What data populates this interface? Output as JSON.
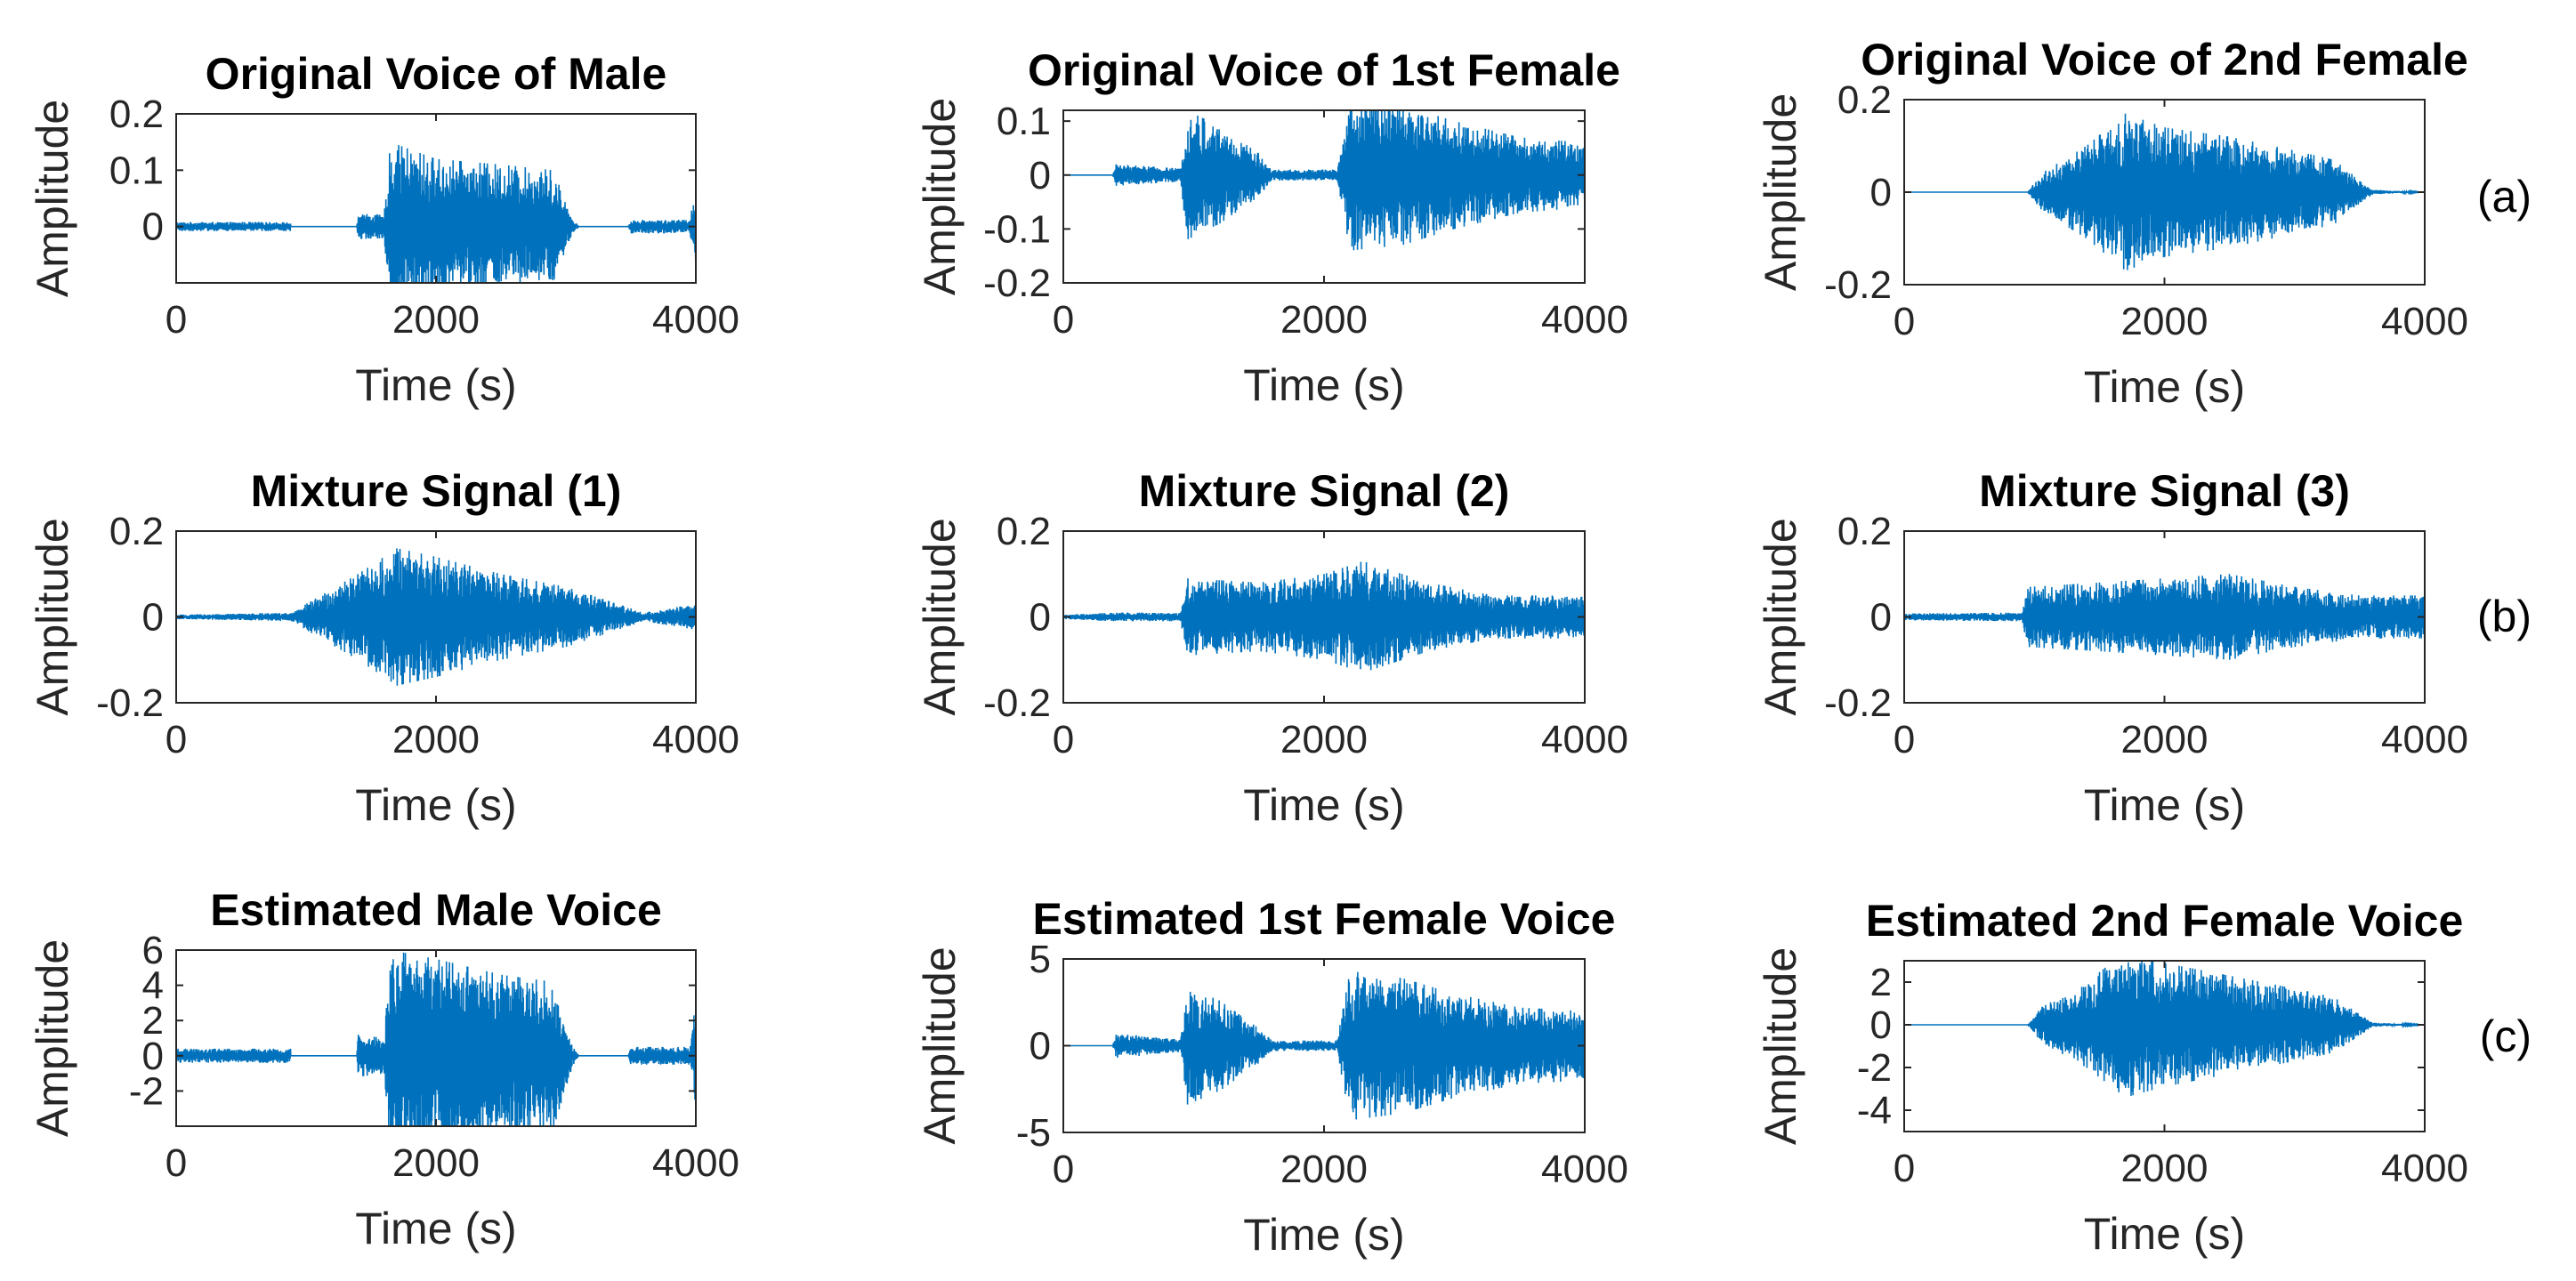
{
  "figure": {
    "row_labels": [
      "(a)",
      "(b)",
      "(c)"
    ]
  },
  "chart_data": [
    {
      "type": "line",
      "title": "Original Voice of Male",
      "xlabel": "Time (s)",
      "ylabel": "Amplitude",
      "xlim": [
        0,
        4000
      ],
      "ylim": [
        -0.1,
        0.2
      ],
      "xticks": [
        0,
        2000,
        4000
      ],
      "yticks": [
        0,
        0.1,
        0.2
      ],
      "ytick_labels": [
        "0",
        "0.1",
        "0.2"
      ],
      "series_color": "#0072BD",
      "envelope": [
        {
          "t": 0,
          "a": 0.008
        },
        {
          "t": 880,
          "a": 0.008
        },
        {
          "t": 881,
          "a": 0.0
        },
        {
          "t": 1390,
          "a": 0.0
        },
        {
          "t": 1400,
          "a": 0.025
        },
        {
          "t": 1600,
          "a": 0.02
        },
        {
          "t": 1650,
          "a": 0.15
        },
        {
          "t": 2000,
          "a": 0.12
        },
        {
          "t": 2500,
          "a": 0.11
        },
        {
          "t": 2900,
          "a": 0.1
        },
        {
          "t": 3050,
          "a": 0.015
        },
        {
          "t": 3100,
          "a": 0.0
        },
        {
          "t": 3480,
          "a": 0.0
        },
        {
          "t": 3500,
          "a": 0.012
        },
        {
          "t": 3950,
          "a": 0.012
        },
        {
          "t": 4000,
          "a": 0.07
        }
      ]
    },
    {
      "type": "line",
      "title": "Original Voice of 1st Female",
      "xlabel": "Time (s)",
      "ylabel": "Amplitude",
      "xlim": [
        0,
        4000
      ],
      "ylim": [
        -0.2,
        0.12
      ],
      "xticks": [
        0,
        2000,
        4000
      ],
      "yticks": [
        -0.2,
        -0.1,
        0,
        0.1
      ],
      "ytick_labels": [
        "-0.2",
        "-0.1",
        "0",
        "0.1"
      ],
      "series_color": "#0072BD",
      "envelope": [
        {
          "t": 0,
          "a": 0.0
        },
        {
          "t": 380,
          "a": 0.0
        },
        {
          "t": 400,
          "a": 0.02
        },
        {
          "t": 900,
          "a": 0.012
        },
        {
          "t": 950,
          "a": 0.12
        },
        {
          "t": 1200,
          "a": 0.09
        },
        {
          "t": 1500,
          "a": 0.04
        },
        {
          "t": 1600,
          "a": 0.01
        },
        {
          "t": 2100,
          "a": 0.01
        },
        {
          "t": 2200,
          "a": 0.14
        },
        {
          "t": 2600,
          "a": 0.13
        },
        {
          "t": 3000,
          "a": 0.1
        },
        {
          "t": 3500,
          "a": 0.07
        },
        {
          "t": 4000,
          "a": 0.06
        }
      ]
    },
    {
      "type": "line",
      "title": "Original Voice of 2nd Female",
      "xlabel": "Time (s)",
      "ylabel": "Amplitude",
      "xlim": [
        0,
        4000
      ],
      "ylim": [
        -0.2,
        0.2
      ],
      "xticks": [
        0,
        2000,
        4000
      ],
      "yticks": [
        -0.2,
        0,
        0.2
      ],
      "ytick_labels": [
        "-0.2",
        "0",
        "0.2"
      ],
      "series_color": "#0072BD",
      "envelope": [
        {
          "t": 0,
          "a": 0.0
        },
        {
          "t": 950,
          "a": 0.0
        },
        {
          "t": 1050,
          "a": 0.04
        },
        {
          "t": 1400,
          "a": 0.1
        },
        {
          "t": 1700,
          "a": 0.17
        },
        {
          "t": 2000,
          "a": 0.14
        },
        {
          "t": 2500,
          "a": 0.12
        },
        {
          "t": 3000,
          "a": 0.09
        },
        {
          "t": 3300,
          "a": 0.07
        },
        {
          "t": 3600,
          "a": 0.005
        },
        {
          "t": 4000,
          "a": 0.0
        }
      ]
    },
    {
      "type": "line",
      "title": "Mixture Signal (1)",
      "xlabel": "Time (s)",
      "ylabel": "Amplitude",
      "xlim": [
        0,
        4000
      ],
      "ylim": [
        -0.2,
        0.2
      ],
      "xticks": [
        0,
        2000,
        4000
      ],
      "yticks": [
        -0.2,
        0,
        0.2
      ],
      "ytick_labels": [
        "-0.2",
        "0",
        "0.2"
      ],
      "series_color": "#0072BD",
      "envelope": [
        {
          "t": 0,
          "a": 0.005
        },
        {
          "t": 900,
          "a": 0.01
        },
        {
          "t": 1000,
          "a": 0.03
        },
        {
          "t": 1400,
          "a": 0.1
        },
        {
          "t": 1700,
          "a": 0.16
        },
        {
          "t": 2000,
          "a": 0.14
        },
        {
          "t": 2500,
          "a": 0.1
        },
        {
          "t": 3000,
          "a": 0.07
        },
        {
          "t": 3300,
          "a": 0.04
        },
        {
          "t": 3600,
          "a": 0.01
        },
        {
          "t": 4000,
          "a": 0.03
        }
      ]
    },
    {
      "type": "line",
      "title": "Mixture Signal (2)",
      "xlabel": "Time (s)",
      "ylabel": "Amplitude",
      "xlim": [
        0,
        4000
      ],
      "ylim": [
        -0.2,
        0.2
      ],
      "xticks": [
        0,
        2000,
        4000
      ],
      "yticks": [
        -0.2,
        0,
        0.2
      ],
      "ytick_labels": [
        "-0.2",
        "0",
        "0.2"
      ],
      "series_color": "#0072BD",
      "envelope": [
        {
          "t": 0,
          "a": 0.005
        },
        {
          "t": 400,
          "a": 0.01
        },
        {
          "t": 900,
          "a": 0.01
        },
        {
          "t": 950,
          "a": 0.09
        },
        {
          "t": 1500,
          "a": 0.08
        },
        {
          "t": 2000,
          "a": 0.1
        },
        {
          "t": 2300,
          "a": 0.13
        },
        {
          "t": 2800,
          "a": 0.08
        },
        {
          "t": 3300,
          "a": 0.05
        },
        {
          "t": 4000,
          "a": 0.05
        }
      ]
    },
    {
      "type": "line",
      "title": "Mixture Signal (3)",
      "xlabel": "Time (s)",
      "ylabel": "Amplitude",
      "xlim": [
        0,
        4000
      ],
      "ylim": [
        -0.2,
        0.2
      ],
      "xticks": [
        0,
        2000,
        4000
      ],
      "yticks": [
        -0.2,
        0,
        0.2
      ],
      "ytick_labels": [
        "-0.2",
        "0",
        "0.2"
      ],
      "series_color": "#0072BD",
      "envelope": [
        {
          "t": 0,
          "a": 0.008
        },
        {
          "t": 900,
          "a": 0.01
        },
        {
          "t": 950,
          "a": 0.07
        },
        {
          "t": 1500,
          "a": 0.08
        },
        {
          "t": 2000,
          "a": 0.09
        },
        {
          "t": 2500,
          "a": 0.1
        },
        {
          "t": 3000,
          "a": 0.07
        },
        {
          "t": 3500,
          "a": 0.05
        },
        {
          "t": 4000,
          "a": 0.05
        }
      ]
    },
    {
      "type": "line",
      "title": "Estimated Male Voice",
      "xlabel": "Time (s)",
      "ylabel": "Amplitude",
      "xlim": [
        0,
        4000
      ],
      "ylim": [
        -4,
        6
      ],
      "xticks": [
        0,
        2000,
        4000
      ],
      "yticks": [
        -2,
        0,
        2,
        4,
        6
      ],
      "ytick_labels": [
        "-2",
        "0",
        "2",
        "4",
        "6"
      ],
      "series_color": "#0072BD",
      "envelope": [
        {
          "t": 0,
          "a": 0.4
        },
        {
          "t": 880,
          "a": 0.4
        },
        {
          "t": 881,
          "a": 0.0
        },
        {
          "t": 1390,
          "a": 0.0
        },
        {
          "t": 1400,
          "a": 1.2
        },
        {
          "t": 1600,
          "a": 1.0
        },
        {
          "t": 1650,
          "a": 6.0
        },
        {
          "t": 2000,
          "a": 5.5
        },
        {
          "t": 2500,
          "a": 4.6
        },
        {
          "t": 2900,
          "a": 4.2
        },
        {
          "t": 3050,
          "a": 0.6
        },
        {
          "t": 3100,
          "a": 0.0
        },
        {
          "t": 3480,
          "a": 0.0
        },
        {
          "t": 3500,
          "a": 0.5
        },
        {
          "t": 3950,
          "a": 0.5
        },
        {
          "t": 4000,
          "a": 3.0
        }
      ]
    },
    {
      "type": "line",
      "title": "Estimated 1st Female Voice",
      "xlabel": "Time (s)",
      "ylabel": "Amplitude",
      "xlim": [
        0,
        4000
      ],
      "ylim": [
        -5,
        5
      ],
      "xticks": [
        0,
        2000,
        4000
      ],
      "yticks": [
        -5,
        0,
        5
      ],
      "ytick_labels": [
        "-5",
        "0",
        "5"
      ],
      "series_color": "#0072BD",
      "envelope": [
        {
          "t": 0,
          "a": 0.0
        },
        {
          "t": 380,
          "a": 0.0
        },
        {
          "t": 400,
          "a": 0.7
        },
        {
          "t": 900,
          "a": 0.4
        },
        {
          "t": 950,
          "a": 3.4
        },
        {
          "t": 1200,
          "a": 2.6
        },
        {
          "t": 1500,
          "a": 1.0
        },
        {
          "t": 1600,
          "a": 0.3
        },
        {
          "t": 2100,
          "a": 0.3
        },
        {
          "t": 2200,
          "a": 4.3
        },
        {
          "t": 2600,
          "a": 3.9
        },
        {
          "t": 3000,
          "a": 3.0
        },
        {
          "t": 3500,
          "a": 2.2
        },
        {
          "t": 4000,
          "a": 2.0
        }
      ]
    },
    {
      "type": "line",
      "title": "Estimated 2nd Female Voice",
      "xlabel": "Time (s)",
      "ylabel": "Amplitude",
      "xlim": [
        0,
        4000
      ],
      "ylim": [
        -5,
        3
      ],
      "xticks": [
        0,
        2000,
        4000
      ],
      "yticks": [
        -4,
        -2,
        0,
        2
      ],
      "ytick_labels": [
        "-4",
        "-2",
        "0",
        "2"
      ],
      "series_color": "#0072BD",
      "envelope": [
        {
          "t": 0,
          "a": 0.0
        },
        {
          "t": 950,
          "a": 0.0
        },
        {
          "t": 1050,
          "a": 0.8
        },
        {
          "t": 1400,
          "a": 2.0
        },
        {
          "t": 1700,
          "a": 3.4
        },
        {
          "t": 2000,
          "a": 2.9
        },
        {
          "t": 2500,
          "a": 2.3
        },
        {
          "t": 3000,
          "a": 1.7
        },
        {
          "t": 3300,
          "a": 1.3
        },
        {
          "t": 3600,
          "a": 0.1
        },
        {
          "t": 4000,
          "a": 0.0
        }
      ]
    }
  ]
}
